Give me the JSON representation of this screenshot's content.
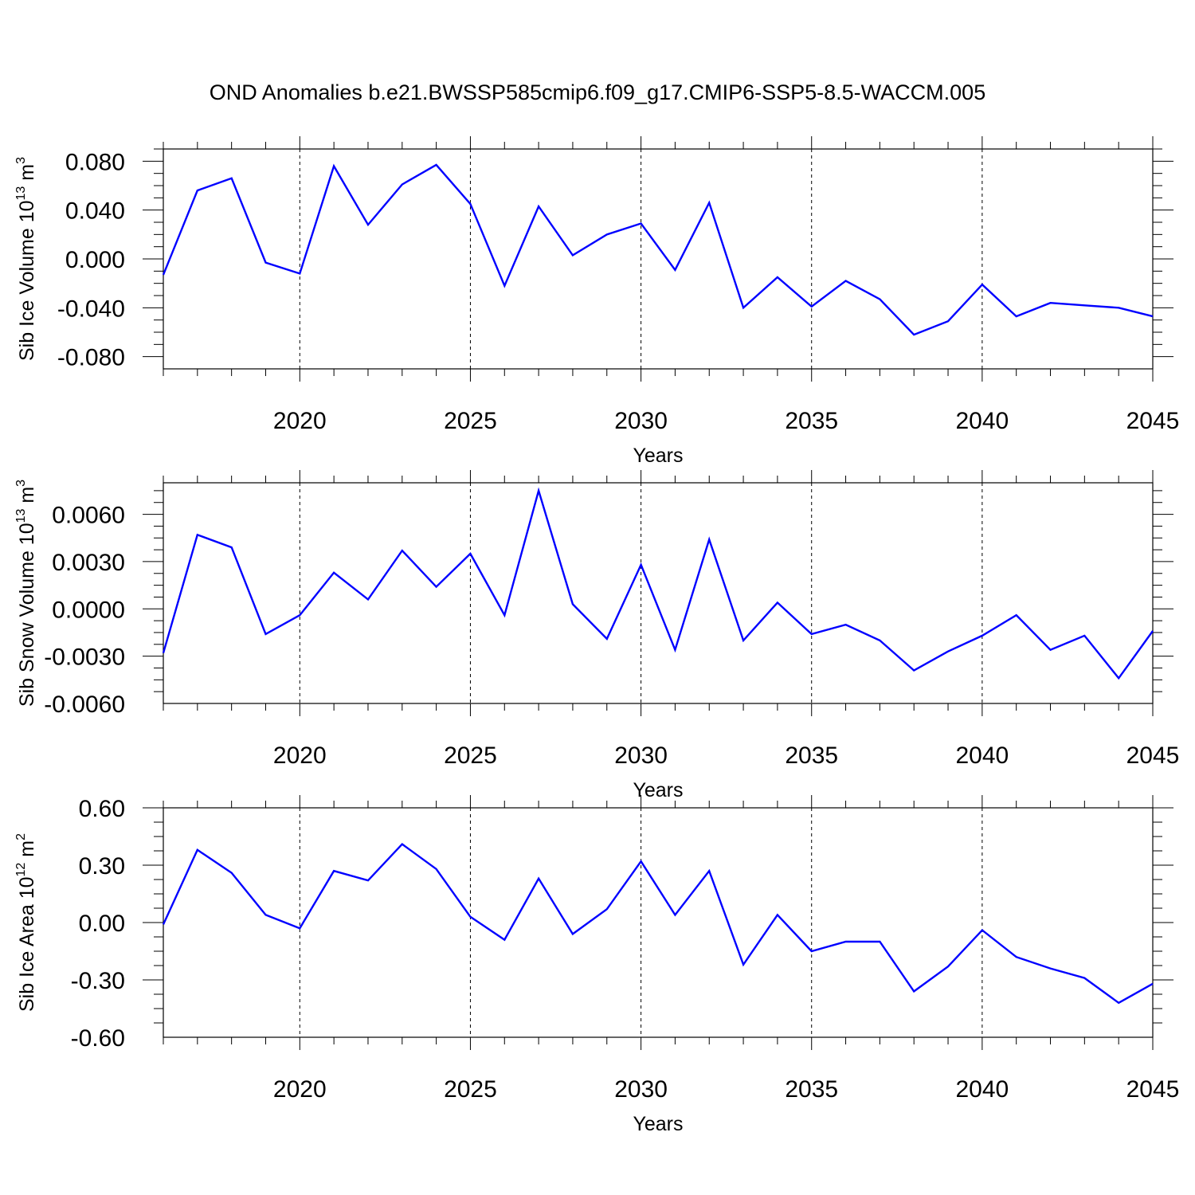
{
  "chart_data": [
    {
      "type": "line",
      "title": "OND Anomalies b.e21.BWSSP585cmip6.f09_g17.CMIP6-SSP5-8.5-WACCM.005",
      "ylabel": "Sib Ice Volume 10",
      "ylabel_exp": "13",
      "ylabel_unit": " m",
      "ylabel_unit_exp": "3",
      "xlabel": "Years",
      "xlim": [
        2016,
        2045
      ],
      "ylim": [
        -0.09,
        0.09
      ],
      "xticks": [
        2020,
        2025,
        2030,
        2035,
        2040,
        2045
      ],
      "xtick_labels": [
        "2020",
        "2025",
        "2030",
        "2035",
        "2040",
        "2045"
      ],
      "yticks": [
        -0.08,
        -0.04,
        0,
        0.04,
        0.08
      ],
      "ytick_labels": [
        "-0.080",
        "-0.040",
        "0.000",
        "0.040",
        "0.080"
      ],
      "grid": "dashed vertical at x ticks",
      "color": "#0000ff",
      "x": [
        2016,
        2017,
        2018,
        2019,
        2020,
        2021,
        2022,
        2023,
        2024,
        2025,
        2026,
        2027,
        2028,
        2029,
        2030,
        2031,
        2032,
        2033,
        2034,
        2035,
        2036,
        2037,
        2038,
        2039,
        2040,
        2041,
        2042,
        2043,
        2044,
        2045
      ],
      "values": [
        -0.013,
        0.056,
        0.066,
        -0.003,
        -0.012,
        0.076,
        0.028,
        0.061,
        0.077,
        0.045,
        -0.022,
        0.043,
        0.003,
        0.02,
        0.029,
        -0.009,
        0.046,
        -0.04,
        -0.015,
        -0.039,
        -0.018,
        -0.033,
        -0.062,
        -0.051,
        -0.021,
        -0.047,
        -0.036,
        -0.038,
        -0.04,
        -0.047
      ]
    },
    {
      "type": "line",
      "ylabel": "Sib Snow Volume 10",
      "ylabel_exp": "13",
      "ylabel_unit": " m",
      "ylabel_unit_exp": "3",
      "xlabel": "Years",
      "xlim": [
        2016,
        2045
      ],
      "ylim": [
        -0.006,
        0.008
      ],
      "xticks": [
        2020,
        2025,
        2030,
        2035,
        2040,
        2045
      ],
      "xtick_labels": [
        "2020",
        "2025",
        "2030",
        "2035",
        "2040",
        "2045"
      ],
      "yticks": [
        -0.006,
        -0.003,
        0,
        0.003,
        0.006
      ],
      "ytick_labels": [
        "-0.0060",
        "-0.0030",
        "0.0000",
        "0.0030",
        "0.0060"
      ],
      "grid": "dashed vertical at x ticks",
      "color": "#0000ff",
      "x": [
        2016,
        2017,
        2018,
        2019,
        2020,
        2021,
        2022,
        2023,
        2024,
        2025,
        2026,
        2027,
        2028,
        2029,
        2030,
        2031,
        2032,
        2033,
        2034,
        2035,
        2036,
        2037,
        2038,
        2039,
        2040,
        2041,
        2042,
        2043,
        2044,
        2045
      ],
      "values": [
        -0.0028,
        0.0047,
        0.0039,
        -0.0016,
        -0.0004,
        0.0023,
        0.0006,
        0.0037,
        0.0014,
        0.0035,
        -0.0004,
        0.0075,
        0.0003,
        -0.0019,
        0.0028,
        -0.0026,
        0.0044,
        -0.002,
        0.0004,
        -0.0016,
        -0.001,
        -0.002,
        -0.0039,
        -0.0027,
        -0.0017,
        -0.0004,
        -0.0026,
        -0.0017,
        -0.0044,
        -0.0014
      ]
    },
    {
      "type": "line",
      "ylabel": "Sib Ice Area 10",
      "ylabel_exp": "12",
      "ylabel_unit": " m",
      "ylabel_unit_exp": "2",
      "xlabel": "Years",
      "xlim": [
        2016,
        2045
      ],
      "ylim": [
        -0.6,
        0.6
      ],
      "xticks": [
        2020,
        2025,
        2030,
        2035,
        2040,
        2045
      ],
      "xtick_labels": [
        "2020",
        "2025",
        "2030",
        "2035",
        "2040",
        "2045"
      ],
      "yticks": [
        -0.6,
        -0.3,
        0,
        0.3,
        0.6
      ],
      "ytick_labels": [
        "-0.60",
        "-0.30",
        "0.00",
        "0.30",
        "0.60"
      ],
      "grid": "dashed vertical at x ticks",
      "color": "#0000ff",
      "x": [
        2016,
        2017,
        2018,
        2019,
        2020,
        2021,
        2022,
        2023,
        2024,
        2025,
        2026,
        2027,
        2028,
        2029,
        2030,
        2031,
        2032,
        2033,
        2034,
        2035,
        2036,
        2037,
        2038,
        2039,
        2040,
        2041,
        2042,
        2043,
        2044,
        2045
      ],
      "values": [
        -0.01,
        0.38,
        0.26,
        0.04,
        -0.03,
        0.27,
        0.22,
        0.41,
        0.28,
        0.03,
        -0.09,
        0.23,
        -0.06,
        0.07,
        0.32,
        0.04,
        0.27,
        -0.22,
        0.04,
        -0.15,
        -0.1,
        -0.1,
        -0.36,
        -0.23,
        -0.04,
        -0.18,
        -0.24,
        -0.29,
        -0.42,
        -0.32
      ]
    }
  ]
}
